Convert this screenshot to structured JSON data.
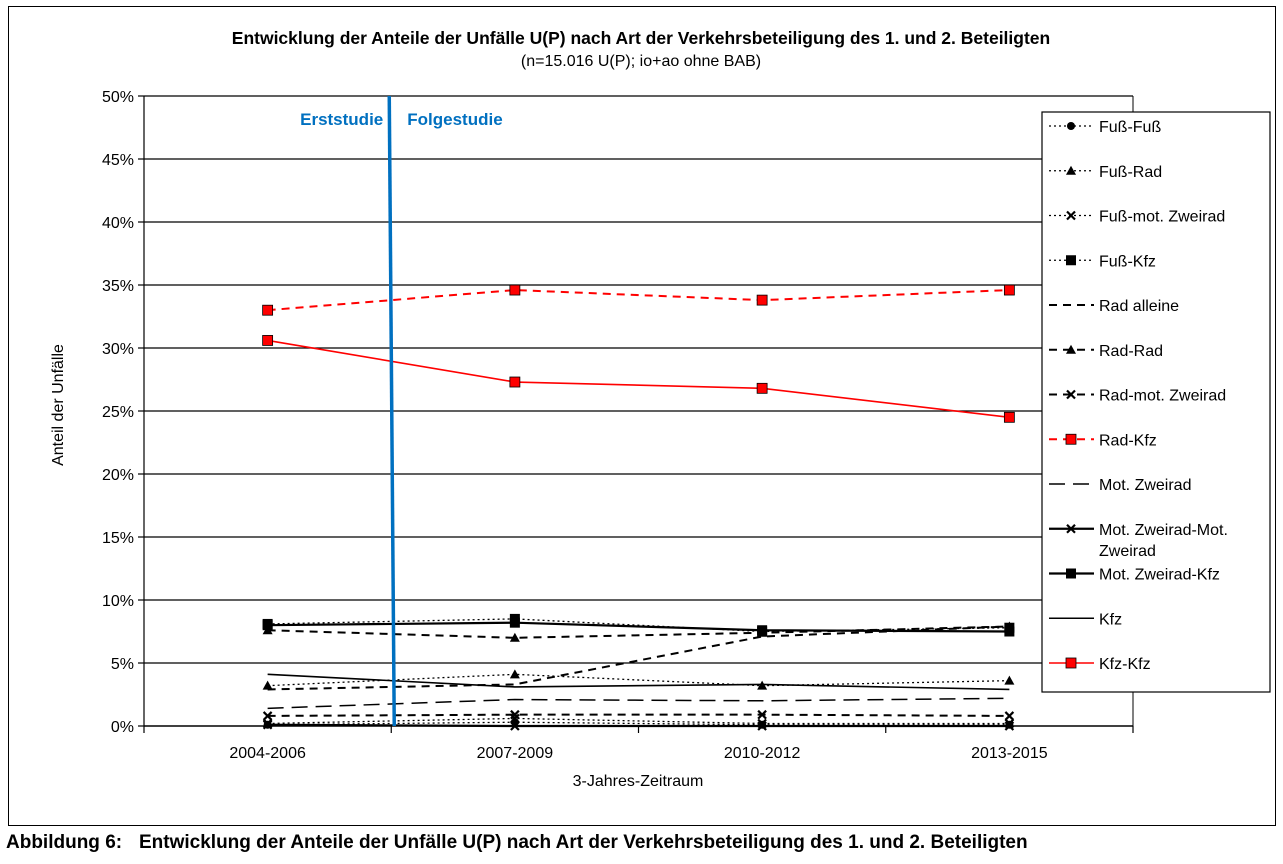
{
  "caption": {
    "label": "Abbildung 6",
    "text": "Entwicklung der Anteile der Unfälle U(P) nach Art der Verkehrsbeteiligung des 1. und 2. Beteiligten"
  },
  "chart_data": {
    "type": "line",
    "title": "Entwicklung der Anteile der Unfälle U(P) nach Art der Verkehrsbeteiligung des 1. und 2. Beteiligten",
    "subtitle": "(n=15.016 U(P); io+ao ohne BAB)",
    "xlabel": "3-Jahres-Zeitraum",
    "ylabel": "Anteil der Unfälle",
    "categories": [
      "2004-2006",
      "2007-2009",
      "2010-2012",
      "2013-2015"
    ],
    "ylim": [
      0,
      50
    ],
    "yticks": [
      "0%",
      "5%",
      "10%",
      "15%",
      "20%",
      "25%",
      "30%",
      "35%",
      "40%",
      "45%",
      "50%"
    ],
    "grid": "horizontal",
    "legend": "right",
    "annotations": {
      "divider_color": "#0070c0",
      "left_label": "Erststudie",
      "right_label": "Folgestudie"
    },
    "series": [
      {
        "name": "Fuß-Fuß",
        "values": [
          0.1,
          0.3,
          0.1,
          0.1
        ],
        "color": "#000000",
        "dash": "dot",
        "marker": "circle"
      },
      {
        "name": "Fuß-Rad",
        "values": [
          3.2,
          4.1,
          3.2,
          3.6
        ],
        "color": "#000000",
        "dash": "dot",
        "marker": "triangle"
      },
      {
        "name": "Fuß-mot. Zweirad",
        "values": [
          0.2,
          0.6,
          0.2,
          0.2
        ],
        "color": "#000000",
        "dash": "dot",
        "marker": "x"
      },
      {
        "name": "Fuß-Kfz",
        "values": [
          8.1,
          8.5,
          7.5,
          7.8
        ],
        "color": "#000000",
        "dash": "dot",
        "marker": "square"
      },
      {
        "name": "Rad alleine",
        "values": [
          2.9,
          3.3,
          7.1,
          7.9
        ],
        "color": "#000000",
        "dash": "dash",
        "marker": "none"
      },
      {
        "name": "Rad-Rad",
        "values": [
          7.6,
          7.0,
          7.4,
          7.9
        ],
        "color": "#000000",
        "dash": "dash",
        "marker": "triangle"
      },
      {
        "name": "Rad-mot. Zweirad",
        "values": [
          0.8,
          0.9,
          0.9,
          0.8
        ],
        "color": "#000000",
        "dash": "dash",
        "marker": "x"
      },
      {
        "name": "Rad-Kfz",
        "values": [
          33.0,
          34.6,
          33.8,
          34.6
        ],
        "color": "#ff0000",
        "dash": "dash",
        "marker": "square"
      },
      {
        "name": "Mot. Zweirad",
        "values": [
          1.4,
          2.1,
          2.0,
          2.2
        ],
        "color": "#000000",
        "dash": "longdash",
        "marker": "none"
      },
      {
        "name": "Mot. Zweirad-Mot. Zweirad",
        "values": [
          0.1,
          0.0,
          0.0,
          0.0
        ],
        "color": "#000000",
        "dash": "solid-thick",
        "marker": "x"
      },
      {
        "name": "Mot. Zweirad-Kfz",
        "values": [
          8.0,
          8.2,
          7.6,
          7.5
        ],
        "color": "#000000",
        "dash": "solid-thick",
        "marker": "square"
      },
      {
        "name": "Kfz",
        "values": [
          4.1,
          3.1,
          3.3,
          2.9
        ],
        "color": "#000000",
        "dash": "solid",
        "marker": "none"
      },
      {
        "name": "Kfz-Kfz",
        "values": [
          30.6,
          27.3,
          26.8,
          24.5
        ],
        "color": "#ff0000",
        "dash": "solid",
        "marker": "square"
      }
    ]
  }
}
